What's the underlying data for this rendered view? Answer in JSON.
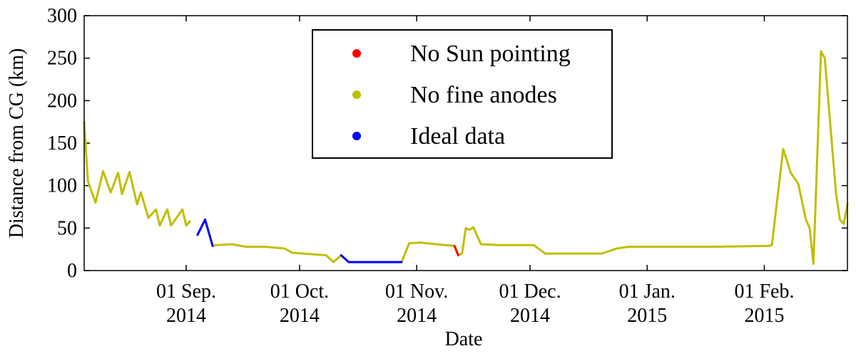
{
  "chart_data": {
    "type": "line",
    "xlabel": "Date",
    "ylabel": "Distance from CG (km)",
    "x": [
      "2014-08-05",
      "2014-08-06",
      "2014-08-08",
      "2014-08-10",
      "2014-08-12",
      "2014-08-14",
      "2014-08-15",
      "2014-08-17",
      "2014-08-19",
      "2014-08-20",
      "2014-08-22",
      "2014-08-24",
      "2014-08-25",
      "2014-08-27",
      "2014-08-28",
      "2014-08-31",
      "2014-09-01",
      "2014-09-02",
      "2014-09-03",
      "2014-09-04",
      "2014-09-06",
      "2014-09-08",
      "2014-09-09",
      "2014-09-13",
      "2014-09-17",
      "2014-09-22",
      "2014-09-27",
      "2014-09-29",
      "2014-10-05",
      "2014-10-08",
      "2014-10-10",
      "2014-10-12",
      "2014-10-14",
      "2014-10-17",
      "2014-10-22",
      "2014-10-28",
      "2014-10-30",
      "2014-11-02",
      "2014-11-06",
      "2014-11-11",
      "2014-11-12",
      "2014-11-13",
      "2014-11-14",
      "2014-11-15",
      "2014-11-16",
      "2014-11-18",
      "2014-11-23",
      "2014-12-02",
      "2014-12-05",
      "2014-12-12",
      "2014-12-20",
      "2014-12-24",
      "2014-12-27",
      "2015-01-19",
      "2015-02-02",
      "2015-02-03",
      "2015-02-06",
      "2015-02-08",
      "2015-02-10",
      "2015-02-12",
      "2015-02-13",
      "2015-02-14",
      "2015-02-16",
      "2015-02-17",
      "2015-02-20",
      "2015-02-21",
      "2015-02-22",
      "2015-02-23"
    ],
    "series": [
      {
        "name": "No fine anodes",
        "color": "#bfbf00",
        "values": [
          175,
          105,
          80,
          117,
          92,
          115,
          90,
          116,
          78,
          92,
          62,
          72,
          53,
          72,
          53,
          72,
          53,
          58,
          null,
          42,
          60,
          29,
          30,
          31,
          28,
          28,
          26,
          21,
          19,
          18,
          10,
          18,
          10,
          10,
          10,
          10,
          32,
          33,
          31,
          29,
          18,
          20,
          50,
          48,
          51,
          31,
          30,
          30,
          20,
          20,
          20,
          26,
          28,
          28,
          29,
          30,
          143,
          115,
          102,
          60,
          50,
          8,
          258,
          250,
          90,
          60,
          55,
          78
        ]
      },
      {
        "name": "Ideal data",
        "color": "#0000ff",
        "values": [
          null,
          null,
          null,
          null,
          null,
          null,
          null,
          null,
          null,
          null,
          null,
          null,
          null,
          null,
          null,
          null,
          null,
          null,
          null,
          42,
          60,
          29,
          null,
          null,
          null,
          null,
          null,
          null,
          null,
          null,
          null,
          18,
          10,
          10,
          10,
          10,
          null,
          null,
          null,
          null,
          null,
          null,
          null,
          null,
          null,
          null,
          null,
          null,
          null,
          null,
          null,
          null,
          null,
          null,
          null,
          null,
          null,
          null,
          null,
          null,
          null,
          null,
          null,
          null,
          null,
          null,
          null,
          null
        ]
      },
      {
        "name": "No Sun pointing",
        "color": "#ff0000",
        "values": [
          null,
          null,
          null,
          null,
          null,
          null,
          null,
          null,
          null,
          null,
          null,
          null,
          null,
          null,
          null,
          null,
          null,
          null,
          null,
          null,
          null,
          null,
          null,
          null,
          null,
          null,
          null,
          null,
          null,
          null,
          null,
          null,
          null,
          null,
          null,
          null,
          null,
          null,
          null,
          29,
          18,
          null,
          null,
          null,
          null,
          null,
          null,
          null,
          null,
          null,
          null,
          null,
          null,
          null,
          null,
          null,
          null,
          null,
          null,
          null,
          null,
          null,
          null,
          null,
          null,
          null,
          null,
          null
        ]
      }
    ],
    "legend_order": [
      "No Sun pointing",
      "No fine anodes",
      "Ideal data"
    ],
    "xlim": [
      "2014-08-05",
      "2015-02-23"
    ],
    "xticks": [
      {
        "value": "2014-09-01",
        "label": "01 Sep. 2014"
      },
      {
        "value": "2014-10-01",
        "label": "01 Oct. 2014"
      },
      {
        "value": "2014-11-01",
        "label": "01 Nov. 2014"
      },
      {
        "value": "2014-12-01",
        "label": "01 Dec. 2014"
      },
      {
        "value": "2015-01-01",
        "label": "01 Jan. 2015"
      },
      {
        "value": "2015-02-01",
        "label": "01 Feb. 2015"
      }
    ],
    "ylim": [
      0,
      300
    ],
    "yticks": [
      0,
      50,
      100,
      150,
      200,
      250,
      300
    ],
    "legend": "upper center"
  }
}
